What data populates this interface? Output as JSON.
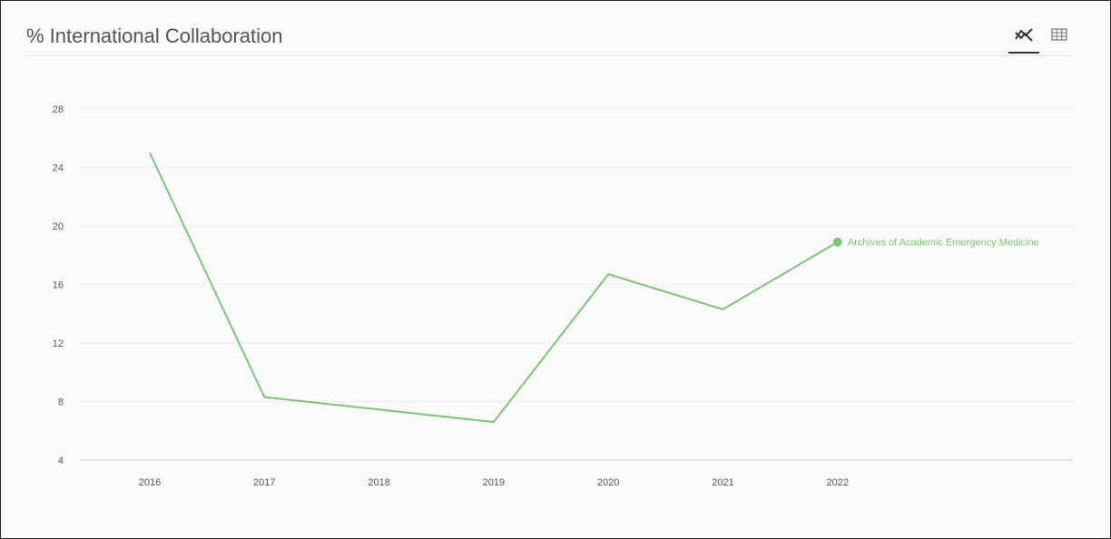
{
  "header": {
    "title": "% International Collaboration",
    "view_modes": [
      "line-chart-icon",
      "table-grid-icon"
    ],
    "active_view": "line-chart-icon"
  },
  "chart_data": {
    "type": "line",
    "title": "% International Collaboration",
    "xlabel": "",
    "ylabel": "",
    "x": [
      "2016",
      "2017",
      "2018",
      "2019",
      "2020",
      "2021",
      "2022"
    ],
    "ylim": [
      4,
      28
    ],
    "yticks": [
      4,
      8,
      12,
      16,
      20,
      24,
      28
    ],
    "grid": true,
    "legend_placement": "end-of-line",
    "series": [
      {
        "name": "Archives of Academic Emergency Medicine",
        "values": [
          25.0,
          8.3,
          null,
          6.6,
          16.7,
          14.3,
          18.9
        ],
        "color": "#7cc576"
      }
    ]
  }
}
